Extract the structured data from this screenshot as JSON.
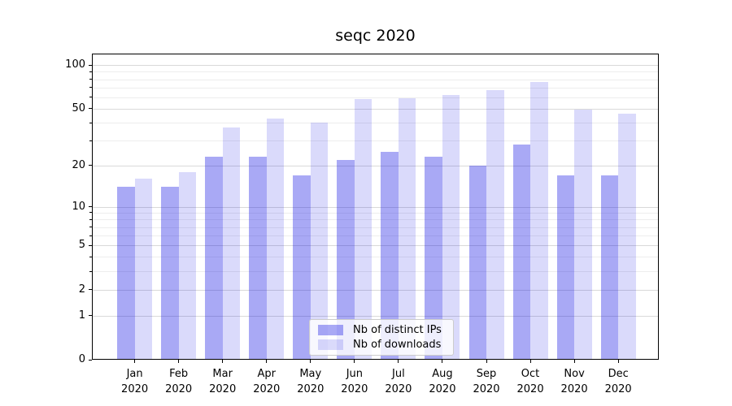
{
  "title": "seqc 2020",
  "chart_data": {
    "type": "bar",
    "categories": [
      "Jan\n2020",
      "Feb\n2020",
      "Mar\n2020",
      "Apr\n2020",
      "May\n2020",
      "Jun\n2020",
      "Jul\n2020",
      "Aug\n2020",
      "Sep\n2020",
      "Oct\n2020",
      "Nov\n2020",
      "Dec\n2020"
    ],
    "series": [
      {
        "name": "Nb of distinct IPs",
        "color": "#0808e2",
        "alpha": 0.35,
        "values": [
          14,
          14,
          23,
          23,
          17,
          22,
          25,
          23,
          20,
          28,
          17,
          17
        ]
      },
      {
        "name": "Nb of downloads",
        "color": "#0808e2",
        "alpha": 0.15,
        "values": [
          16,
          18,
          37,
          43,
          40,
          58,
          59,
          62,
          67,
          77,
          49,
          46
        ]
      }
    ],
    "xlabel": "",
    "ylabel": "",
    "yscale": "log1p",
    "ylim": [
      0,
      120
    ],
    "yticks": [
      100,
      50,
      20,
      10,
      5,
      2,
      1,
      0
    ],
    "minor_gridlines": [
      3,
      4,
      6,
      7,
      8,
      9,
      30,
      40,
      60,
      70,
      80,
      90
    ],
    "grid": "on",
    "grid_major_color": "#d9d9d9",
    "grid_minor_color": "#ededed",
    "legend_position": "lower center"
  }
}
